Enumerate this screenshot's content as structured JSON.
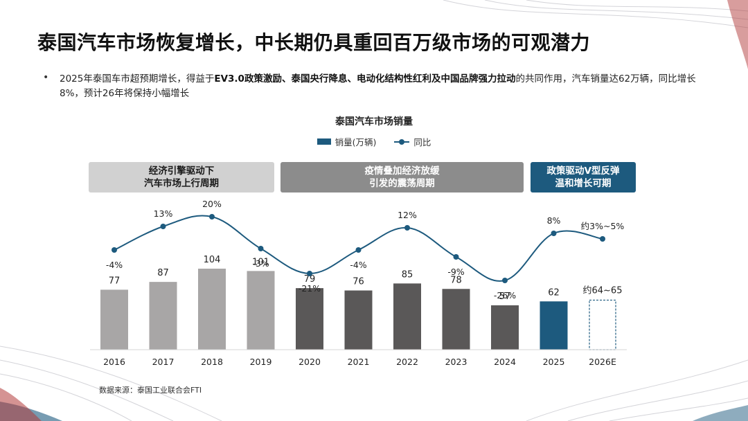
{
  "page": {
    "title": "泰国汽车市场恢复增长，中长期仍具重回百万级市场的可观潜力",
    "bullet": {
      "prefix": "2025年泰国车市超预期增长，得益于",
      "bold": "EV3.0政策激励、泰国央行降息、电动化结构性红利及中国品牌强力拉动",
      "suffix": "的共同作用，汽车销量达62万辆，同比增长8%，预计26年将保持小幅增长"
    },
    "source": "数据来源：泰国工业联合会FTI"
  },
  "colors": {
    "accent": "#1d5a7e",
    "bar_light": "#a8a6a6",
    "bar_dark": "#5a5858",
    "phase_light": "#d1d1d1",
    "phase_mid": "#8c8c8c"
  },
  "phases": [
    {
      "label": "经济引擎驱动下\n汽车市场上行周期"
    },
    {
      "label": "疫情叠加经济放缓\n引发的震荡周期"
    },
    {
      "label": "政策驱动V型反弹\n温和增长可期"
    }
  ],
  "chart_data": {
    "type": "bar+line",
    "title": "泰国汽车市场销量",
    "legend": [
      "销量(万辆)",
      "同比"
    ],
    "categories": [
      "2016",
      "2017",
      "2018",
      "2019",
      "2020",
      "2021",
      "2022",
      "2023",
      "2024",
      "2025",
      "2026E"
    ],
    "series": [
      {
        "name": "销量(万辆)",
        "type": "bar",
        "values": [
          77,
          87,
          104,
          101,
          79,
          76,
          85,
          78,
          57,
          62,
          64.5
        ],
        "labels": [
          "77",
          "87",
          "104",
          "101",
          "79",
          "76",
          "85",
          "78",
          "57",
          "62",
          "约64~65"
        ],
        "styles": [
          "light",
          "light",
          "light",
          "light",
          "dark",
          "dark",
          "dark",
          "dark",
          "dark",
          "accent",
          "forecast"
        ]
      },
      {
        "name": "同比",
        "type": "line",
        "values": [
          -4,
          13,
          20,
          -3,
          -21,
          -4,
          12,
          -9,
          -26,
          8,
          4
        ],
        "labels": [
          "-4%",
          "13%",
          "20%",
          "-3%",
          "-21%",
          "-4%",
          "12%",
          "-9%",
          "-26%",
          "8%",
          "约3%~5%"
        ],
        "label_pos": [
          "below",
          "above",
          "above",
          "below",
          "below",
          "below",
          "above",
          "below",
          "below",
          "above",
          "above"
        ]
      }
    ],
    "bar_ylim": [
      0,
      110
    ],
    "line_ylim": [
      -30,
      22
    ]
  }
}
